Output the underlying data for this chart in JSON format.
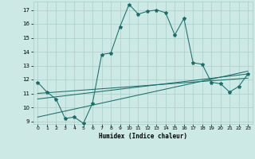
{
  "xlabel": "Humidex (Indice chaleur)",
  "xlim": [
    -0.5,
    23.5
  ],
  "ylim": [
    8.8,
    17.6
  ],
  "yticks": [
    9,
    10,
    11,
    12,
    13,
    14,
    15,
    16,
    17
  ],
  "xticks": [
    0,
    1,
    2,
    3,
    4,
    5,
    6,
    7,
    8,
    9,
    10,
    11,
    12,
    13,
    14,
    15,
    16,
    17,
    18,
    19,
    20,
    21,
    22,
    23
  ],
  "bg_color": "#cce9e5",
  "grid_color": "#aacfcb",
  "line_color": "#1a6e6a",
  "line1_x": [
    0,
    1,
    2,
    3,
    4,
    5,
    6,
    7,
    8,
    9,
    10,
    11,
    12,
    13,
    14,
    15,
    16,
    17,
    18,
    19,
    20,
    21,
    22,
    23
  ],
  "line1_y": [
    11.8,
    11.1,
    10.6,
    9.2,
    9.3,
    8.85,
    10.3,
    13.8,
    13.9,
    15.8,
    17.4,
    16.7,
    16.9,
    17.0,
    16.8,
    15.2,
    16.4,
    13.2,
    13.1,
    11.8,
    11.7,
    11.1,
    11.5,
    12.4
  ],
  "line2_x": [
    0,
    23
  ],
  "line2_y": [
    11.0,
    12.1
  ],
  "line3_x": [
    0,
    23
  ],
  "line3_y": [
    10.6,
    12.4
  ],
  "line4_x": [
    0,
    23
  ],
  "line4_y": [
    9.3,
    12.6
  ],
  "marker_line_x": [
    0,
    1,
    2,
    3,
    4,
    5,
    6,
    7,
    8,
    9,
    10,
    11,
    12,
    13,
    14,
    15,
    16,
    17,
    18,
    19,
    20,
    21,
    22,
    23
  ],
  "marker_line_y": [
    11.0,
    11.0,
    10.6,
    9.2,
    9.3,
    8.85,
    9.2,
    10.4,
    10.8,
    11.0,
    11.1,
    11.2,
    11.3,
    11.35,
    11.4,
    11.5,
    11.6,
    11.7,
    11.75,
    11.8,
    11.85,
    11.9,
    11.95,
    12.1
  ]
}
